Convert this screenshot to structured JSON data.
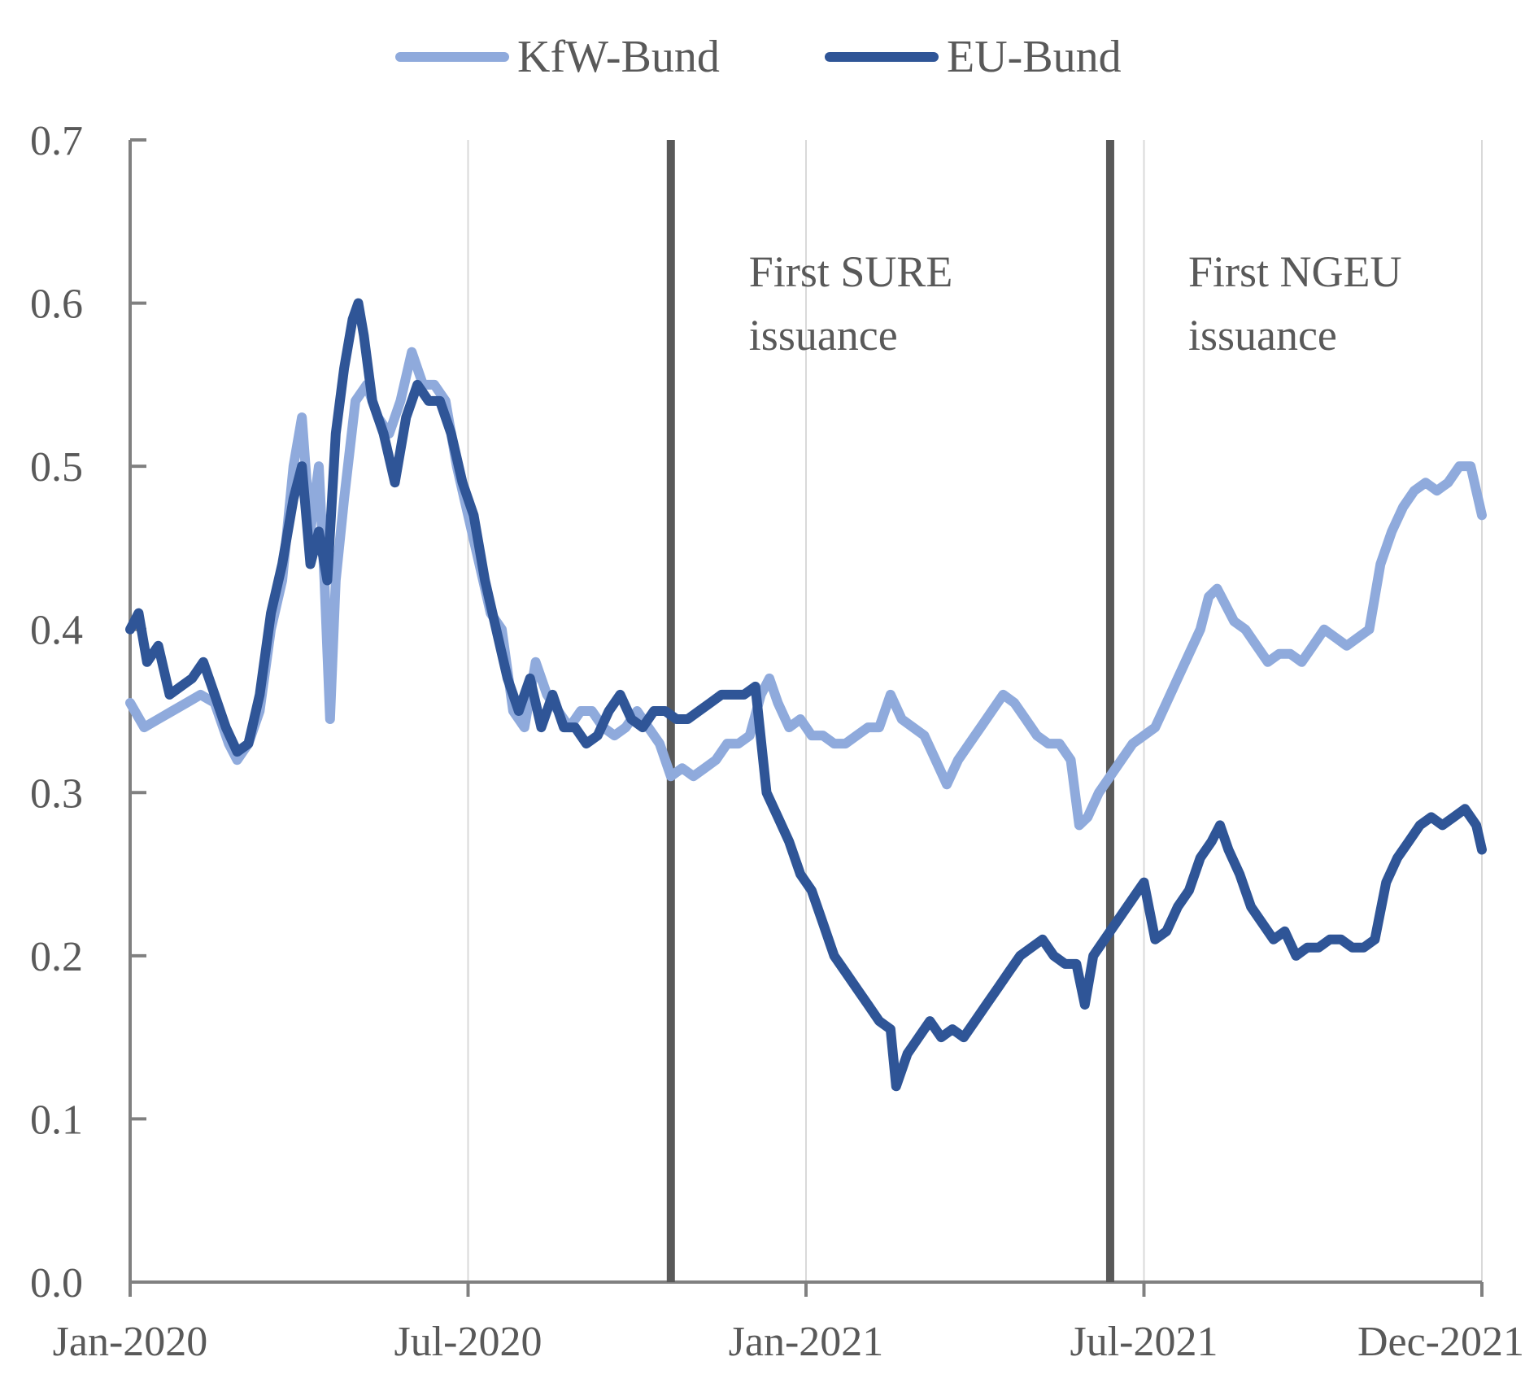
{
  "chart_data": {
    "type": "line",
    "title": "",
    "xlabel": "",
    "ylabel": "",
    "ylim": [
      0,
      0.7
    ],
    "xlim": [
      0,
      24
    ],
    "y_ticks": [
      0.0,
      0.1,
      0.2,
      0.3,
      0.4,
      0.5,
      0.6,
      0.7
    ],
    "y_tick_labels": [
      "0.0",
      "0.1",
      "0.2",
      "0.3",
      "0.4",
      "0.5",
      "0.6",
      "0.7"
    ],
    "x_tick_labels": [
      {
        "label": "Jan-2020",
        "x": 0
      },
      {
        "label": "Jul-2020",
        "x": 6
      },
      {
        "label": "Jan-2021",
        "x": 12
      },
      {
        "label": "Jul-2021",
        "x": 18
      },
      {
        "label": "Dec-2021",
        "x": 24
      }
    ],
    "x_unit": "months since Jan-2020",
    "legend_position": "top-center",
    "grid": "vertical",
    "colors": {
      "kfw": "#8FAADC",
      "eu": "#2F5597",
      "event_line": "#595959",
      "axis": "#808080",
      "grid": "#D9D9D9",
      "text": "#595959"
    },
    "series": [
      {
        "name": "KfW-Bund",
        "color": "#8FAADC",
        "points": [
          [
            0,
            0.355
          ],
          [
            0.25,
            0.34
          ],
          [
            0.5,
            0.345
          ],
          [
            0.75,
            0.35
          ],
          [
            1,
            0.355
          ],
          [
            1.25,
            0.36
          ],
          [
            1.5,
            0.355
          ],
          [
            1.75,
            0.33
          ],
          [
            1.9,
            0.32
          ],
          [
            2.1,
            0.33
          ],
          [
            2.3,
            0.35
          ],
          [
            2.5,
            0.4
          ],
          [
            2.7,
            0.43
          ],
          [
            2.9,
            0.5
          ],
          [
            3.05,
            0.53
          ],
          [
            3.2,
            0.46
          ],
          [
            3.35,
            0.5
          ],
          [
            3.45,
            0.43
          ],
          [
            3.55,
            0.345
          ],
          [
            3.65,
            0.43
          ],
          [
            3.8,
            0.48
          ],
          [
            4,
            0.54
          ],
          [
            4.2,
            0.55
          ],
          [
            4.4,
            0.53
          ],
          [
            4.6,
            0.52
          ],
          [
            4.8,
            0.54
          ],
          [
            5,
            0.57
          ],
          [
            5.2,
            0.55
          ],
          [
            5.4,
            0.55
          ],
          [
            5.6,
            0.54
          ],
          [
            5.8,
            0.5
          ],
          [
            6,
            0.47
          ],
          [
            6.2,
            0.44
          ],
          [
            6.4,
            0.41
          ],
          [
            6.6,
            0.4
          ],
          [
            6.8,
            0.35
          ],
          [
            7,
            0.34
          ],
          [
            7.2,
            0.38
          ],
          [
            7.4,
            0.36
          ],
          [
            7.6,
            0.35
          ],
          [
            7.8,
            0.34
          ],
          [
            8,
            0.35
          ],
          [
            8.2,
            0.35
          ],
          [
            8.4,
            0.34
          ],
          [
            8.6,
            0.335
          ],
          [
            8.8,
            0.34
          ],
          [
            9,
            0.35
          ],
          [
            9.2,
            0.34
          ],
          [
            9.4,
            0.33
          ],
          [
            9.6,
            0.31
          ],
          [
            9.8,
            0.315
          ],
          [
            10,
            0.31
          ],
          [
            10.2,
            0.315
          ],
          [
            10.4,
            0.32
          ],
          [
            10.6,
            0.33
          ],
          [
            10.8,
            0.33
          ],
          [
            11,
            0.335
          ],
          [
            11.2,
            0.36
          ],
          [
            11.35,
            0.37
          ],
          [
            11.5,
            0.355
          ],
          [
            11.7,
            0.34
          ],
          [
            11.9,
            0.345
          ],
          [
            12.1,
            0.335
          ],
          [
            12.3,
            0.335
          ],
          [
            12.5,
            0.33
          ],
          [
            12.7,
            0.33
          ],
          [
            12.9,
            0.335
          ],
          [
            13.1,
            0.34
          ],
          [
            13.3,
            0.34
          ],
          [
            13.5,
            0.36
          ],
          [
            13.7,
            0.345
          ],
          [
            13.9,
            0.34
          ],
          [
            14.1,
            0.335
          ],
          [
            14.3,
            0.32
          ],
          [
            14.5,
            0.305
          ],
          [
            14.7,
            0.32
          ],
          [
            14.9,
            0.33
          ],
          [
            15.1,
            0.34
          ],
          [
            15.3,
            0.35
          ],
          [
            15.5,
            0.36
          ],
          [
            15.7,
            0.355
          ],
          [
            15.9,
            0.345
          ],
          [
            16.1,
            0.335
          ],
          [
            16.3,
            0.33
          ],
          [
            16.5,
            0.33
          ],
          [
            16.7,
            0.32
          ],
          [
            16.85,
            0.28
          ],
          [
            17,
            0.285
          ],
          [
            17.2,
            0.3
          ],
          [
            17.4,
            0.31
          ],
          [
            17.6,
            0.32
          ],
          [
            17.8,
            0.33
          ],
          [
            18,
            0.335
          ],
          [
            18.2,
            0.34
          ],
          [
            18.4,
            0.355
          ],
          [
            18.6,
            0.37
          ],
          [
            18.8,
            0.385
          ],
          [
            19,
            0.4
          ],
          [
            19.15,
            0.42
          ],
          [
            19.3,
            0.425
          ],
          [
            19.45,
            0.415
          ],
          [
            19.6,
            0.405
          ],
          [
            19.8,
            0.4
          ],
          [
            20,
            0.39
          ],
          [
            20.2,
            0.38
          ],
          [
            20.4,
            0.385
          ],
          [
            20.6,
            0.385
          ],
          [
            20.8,
            0.38
          ],
          [
            21,
            0.39
          ],
          [
            21.2,
            0.4
          ],
          [
            21.4,
            0.395
          ],
          [
            21.6,
            0.39
          ],
          [
            21.8,
            0.395
          ],
          [
            22,
            0.4
          ],
          [
            22.2,
            0.44
          ],
          [
            22.4,
            0.46
          ],
          [
            22.6,
            0.475
          ],
          [
            22.8,
            0.485
          ],
          [
            23,
            0.49
          ],
          [
            23.2,
            0.485
          ],
          [
            23.4,
            0.49
          ],
          [
            23.6,
            0.5
          ],
          [
            23.8,
            0.5
          ],
          [
            24,
            0.47
          ]
        ]
      },
      {
        "name": "EU-Bund",
        "color": "#2F5597",
        "points": [
          [
            0,
            0.4
          ],
          [
            0.15,
            0.41
          ],
          [
            0.3,
            0.38
          ],
          [
            0.5,
            0.39
          ],
          [
            0.7,
            0.36
          ],
          [
            0.9,
            0.365
          ],
          [
            1.1,
            0.37
          ],
          [
            1.3,
            0.38
          ],
          [
            1.5,
            0.36
          ],
          [
            1.7,
            0.34
          ],
          [
            1.9,
            0.325
          ],
          [
            2.1,
            0.33
          ],
          [
            2.3,
            0.36
          ],
          [
            2.5,
            0.41
          ],
          [
            2.7,
            0.44
          ],
          [
            2.9,
            0.48
          ],
          [
            3.05,
            0.5
          ],
          [
            3.2,
            0.44
          ],
          [
            3.35,
            0.46
          ],
          [
            3.5,
            0.43
          ],
          [
            3.65,
            0.52
          ],
          [
            3.8,
            0.56
          ],
          [
            3.95,
            0.59
          ],
          [
            4.05,
            0.6
          ],
          [
            4.15,
            0.58
          ],
          [
            4.3,
            0.54
          ],
          [
            4.5,
            0.52
          ],
          [
            4.7,
            0.49
          ],
          [
            4.9,
            0.53
          ],
          [
            5.1,
            0.55
          ],
          [
            5.3,
            0.54
          ],
          [
            5.5,
            0.54
          ],
          [
            5.7,
            0.52
          ],
          [
            5.9,
            0.49
          ],
          [
            6.1,
            0.47
          ],
          [
            6.3,
            0.43
          ],
          [
            6.5,
            0.4
          ],
          [
            6.7,
            0.37
          ],
          [
            6.9,
            0.35
          ],
          [
            7.1,
            0.37
          ],
          [
            7.3,
            0.34
          ],
          [
            7.5,
            0.36
          ],
          [
            7.7,
            0.34
          ],
          [
            7.9,
            0.34
          ],
          [
            8.1,
            0.33
          ],
          [
            8.3,
            0.335
          ],
          [
            8.5,
            0.35
          ],
          [
            8.7,
            0.36
          ],
          [
            8.9,
            0.345
          ],
          [
            9.1,
            0.34
          ],
          [
            9.3,
            0.35
          ],
          [
            9.5,
            0.35
          ],
          [
            9.7,
            0.345
          ],
          [
            9.9,
            0.345
          ],
          [
            10.1,
            0.35
          ],
          [
            10.3,
            0.355
          ],
          [
            10.5,
            0.36
          ],
          [
            10.7,
            0.36
          ],
          [
            10.9,
            0.36
          ],
          [
            11.1,
            0.365
          ],
          [
            11.3,
            0.3
          ],
          [
            11.5,
            0.285
          ],
          [
            11.7,
            0.27
          ],
          [
            11.9,
            0.25
          ],
          [
            12.1,
            0.24
          ],
          [
            12.3,
            0.22
          ],
          [
            12.5,
            0.2
          ],
          [
            12.7,
            0.19
          ],
          [
            12.9,
            0.18
          ],
          [
            13.1,
            0.17
          ],
          [
            13.3,
            0.16
          ],
          [
            13.5,
            0.155
          ],
          [
            13.6,
            0.12
          ],
          [
            13.8,
            0.14
          ],
          [
            14,
            0.15
          ],
          [
            14.2,
            0.16
          ],
          [
            14.4,
            0.15
          ],
          [
            14.6,
            0.155
          ],
          [
            14.8,
            0.15
          ],
          [
            15,
            0.16
          ],
          [
            15.2,
            0.17
          ],
          [
            15.4,
            0.18
          ],
          [
            15.6,
            0.19
          ],
          [
            15.8,
            0.2
          ],
          [
            16,
            0.205
          ],
          [
            16.2,
            0.21
          ],
          [
            16.4,
            0.2
          ],
          [
            16.6,
            0.195
          ],
          [
            16.8,
            0.195
          ],
          [
            16.95,
            0.17
          ],
          [
            17.1,
            0.2
          ],
          [
            17.3,
            0.21
          ],
          [
            17.5,
            0.22
          ],
          [
            17.7,
            0.23
          ],
          [
            17.9,
            0.24
          ],
          [
            18,
            0.245
          ],
          [
            18.2,
            0.21
          ],
          [
            18.4,
            0.215
          ],
          [
            18.6,
            0.23
          ],
          [
            18.8,
            0.24
          ],
          [
            19,
            0.26
          ],
          [
            19.2,
            0.27
          ],
          [
            19.35,
            0.28
          ],
          [
            19.5,
            0.265
          ],
          [
            19.7,
            0.25
          ],
          [
            19.9,
            0.23
          ],
          [
            20.1,
            0.22
          ],
          [
            20.3,
            0.21
          ],
          [
            20.5,
            0.215
          ],
          [
            20.7,
            0.2
          ],
          [
            20.9,
            0.205
          ],
          [
            21.1,
            0.205
          ],
          [
            21.3,
            0.21
          ],
          [
            21.5,
            0.21
          ],
          [
            21.7,
            0.205
          ],
          [
            21.9,
            0.205
          ],
          [
            22.1,
            0.21
          ],
          [
            22.3,
            0.245
          ],
          [
            22.5,
            0.26
          ],
          [
            22.7,
            0.27
          ],
          [
            22.9,
            0.28
          ],
          [
            23.1,
            0.285
          ],
          [
            23.3,
            0.28
          ],
          [
            23.5,
            0.285
          ],
          [
            23.7,
            0.29
          ],
          [
            23.9,
            0.28
          ],
          [
            24,
            0.265
          ]
        ]
      }
    ],
    "events": [
      {
        "x": 9.6,
        "label_line1": "First SURE",
        "label_line2": "issuance"
      },
      {
        "x": 17.4,
        "label_line1": "First NGEU",
        "label_line2": "issuance"
      }
    ]
  }
}
